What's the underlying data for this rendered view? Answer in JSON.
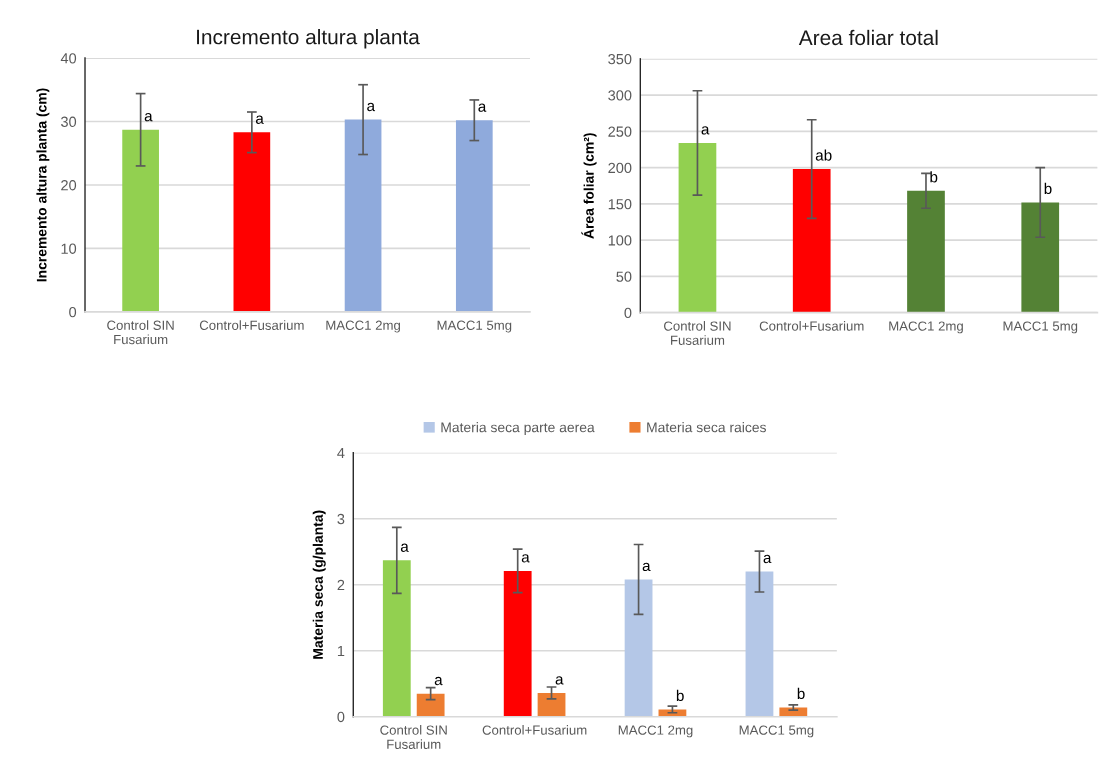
{
  "chart_data": [
    {
      "type": "bar",
      "title": "Incremento altura planta",
      "ylabel": "Incremento altura planta (cm)",
      "categories": [
        "Control SIN\nFusarium",
        "Control+Fusarium",
        "MACC1 2mg",
        "MACC1 5mg"
      ],
      "values": [
        28.7,
        28.3,
        30.3,
        30.2
      ],
      "colors": [
        "#92d050",
        "#ff0000",
        "#8faadc",
        "#8faadc"
      ],
      "errors": [
        5.7,
        3.2,
        5.5,
        3.2
      ],
      "ylim": [
        0,
        40
      ],
      "yticks": [
        0,
        10,
        20,
        30,
        40
      ],
      "grid": "y",
      "annotations": [
        "a",
        "a",
        "a",
        "a"
      ]
    },
    {
      "type": "bar",
      "title": "Area foliar total",
      "ylabel": "Área foliar (cm²)",
      "categories": [
        "Control SIN\nFusarium",
        "Control+Fusarium",
        "MACC1 2mg",
        "MACC1 5mg"
      ],
      "values": [
        234,
        198,
        168,
        152
      ],
      "colors": [
        "#92d050",
        "#ff0000",
        "#548235",
        "#548235"
      ],
      "errors": [
        72,
        68,
        24,
        48
      ],
      "ylim": [
        0,
        350
      ],
      "yticks": [
        0,
        50,
        100,
        150,
        200,
        250,
        300,
        350
      ],
      "grid": "y",
      "annotations": [
        "a",
        "ab",
        "b",
        "b"
      ]
    },
    {
      "type": "bar",
      "ylabel": "Materia seca (g/planta)",
      "categories": [
        "Control SIN\nFusarium",
        "Control+Fusarium",
        "MACC1 2mg",
        "MACC1 5mg"
      ],
      "series": [
        {
          "name": "Materia seca parte aerea",
          "color": "#b4c7e7",
          "colors": [
            "#92d050",
            "#ff0000",
            "#b4c7e7",
            "#b4c7e7"
          ],
          "values": [
            2.37,
            2.21,
            2.08,
            2.2
          ],
          "errors": [
            0.5,
            0.33,
            0.53,
            0.31
          ]
        },
        {
          "name": "Materia seca raices",
          "color": "#ed7d31",
          "values": [
            0.35,
            0.36,
            0.11,
            0.14
          ],
          "errors": [
            0.09,
            0.09,
            0.05,
            0.04
          ]
        }
      ],
      "ylim": [
        0,
        4
      ],
      "yticks": [
        0,
        1,
        2,
        3,
        4
      ],
      "grid": "y",
      "legend": "top",
      "annotations": [
        "a",
        "a",
        "a",
        "a",
        "a",
        "a",
        "b",
        "b"
      ]
    }
  ]
}
